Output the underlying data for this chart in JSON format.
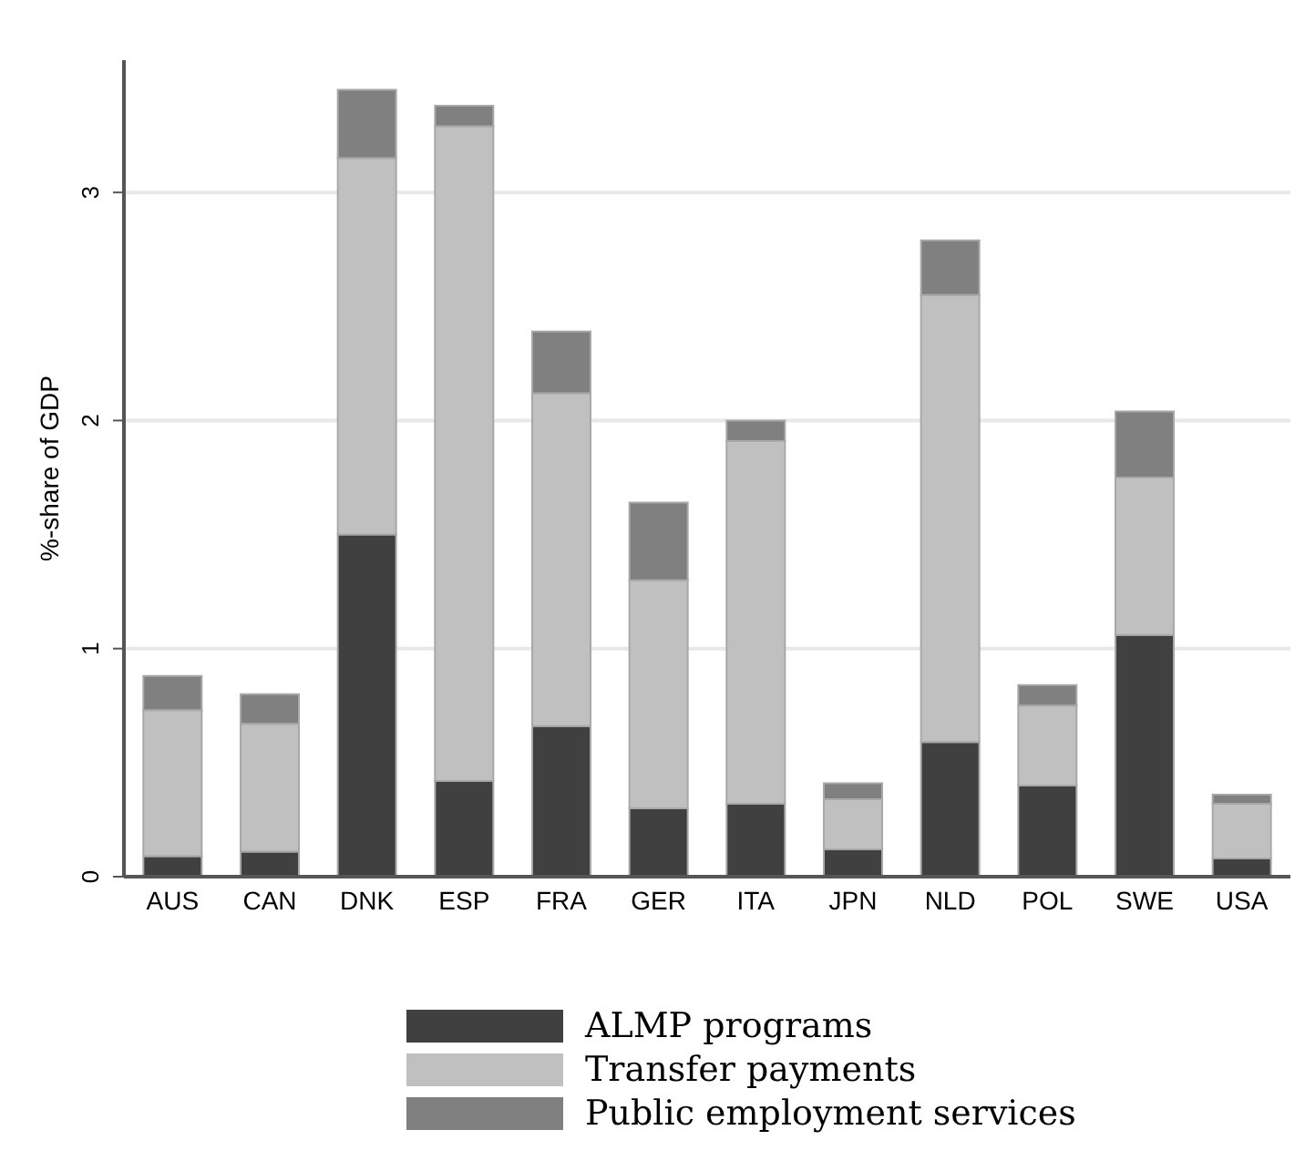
{
  "chart_data": {
    "type": "bar",
    "stacked": true,
    "ylabel": "%-share of GDP",
    "categories": [
      "AUS",
      "CAN",
      "DNK",
      "ESP",
      "FRA",
      "GER",
      "ITA",
      "JPN",
      "NLD",
      "POL",
      "SWE",
      "USA"
    ],
    "series": [
      {
        "name": "ALMP programs",
        "color": "#404040",
        "values": [
          0.09,
          0.11,
          1.5,
          0.42,
          0.66,
          0.3,
          0.32,
          0.12,
          0.59,
          0.4,
          1.06,
          0.08
        ]
      },
      {
        "name": "Transfer payments",
        "color": "#c0c0c0",
        "values": [
          0.64,
          0.56,
          1.65,
          2.87,
          1.46,
          1.0,
          1.59,
          0.22,
          1.96,
          0.35,
          0.69,
          0.24
        ]
      },
      {
        "name": "Public employment services",
        "color": "#808080",
        "values": [
          0.15,
          0.13,
          0.3,
          0.09,
          0.27,
          0.34,
          0.09,
          0.07,
          0.24,
          0.09,
          0.29,
          0.04
        ]
      }
    ],
    "ylim": [
      0,
      3.58
    ],
    "yticks": [
      0,
      1,
      2,
      3
    ],
    "grid": "y",
    "legend": "bottom"
  }
}
